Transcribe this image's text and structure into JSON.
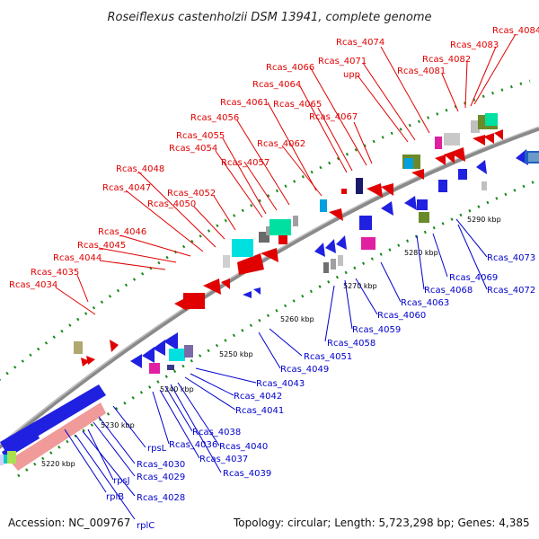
{
  "title": "Roseiflexus castenholzii DSM 13941, complete genome",
  "footer": {
    "accession": "Accession: NC_009767",
    "topology": "Topology: circular; Length: 5,723,298 bp; Genes: 4,385"
  },
  "colors": {
    "forward_label": "#e00000",
    "reverse_label": "#0000cc",
    "backbone": "#8a8a8a",
    "tick_dots": "#1a8a1a"
  },
  "kbp_ticks": [
    "5220 kbp",
    "5230 kbp",
    "5240 kbp",
    "5250 kbp",
    "5260 kbp",
    "5270 kbp",
    "5280 kbp",
    "5290 kbp"
  ],
  "forward_genes": [
    "Rcas_4034",
    "Rcas_4035",
    "Rcas_4044",
    "Rcas_4045",
    "Rcas_4046",
    "Rcas_4047",
    "Rcas_4048",
    "Rcas_4050",
    "Rcas_4052",
    "Rcas_4054",
    "Rcas_4055",
    "Rcas_4056",
    "Rcas_4057",
    "Rcas_4061",
    "Rcas_4062",
    "Rcas_4064",
    "Rcas_4065",
    "Rcas_4066",
    "Rcas_4067",
    "upp",
    "Rcas_4071",
    "Rcas_4074",
    "Rcas_4081",
    "Rcas_4082",
    "Rcas_4083",
    "Rcas_4084"
  ],
  "reverse_genes": [
    "rplC",
    "rplB",
    "Rcas_4028",
    "rpsJ",
    "Rcas_4029",
    "Rcas_4030",
    "rpsL",
    "Rcas_4036",
    "Rcas_4037",
    "Rcas_4038",
    "Rcas_4039",
    "Rcas_4040",
    "Rcas_4041",
    "Rcas_4042",
    "Rcas_4043",
    "Rcas_4049",
    "Rcas_4051",
    "Rcas_4058",
    "Rcas_4059",
    "Rcas_4060",
    "Rcas_4063",
    "Rcas_4068",
    "Rcas_4069",
    "Rcas_4072",
    "Rcas_4073"
  ]
}
